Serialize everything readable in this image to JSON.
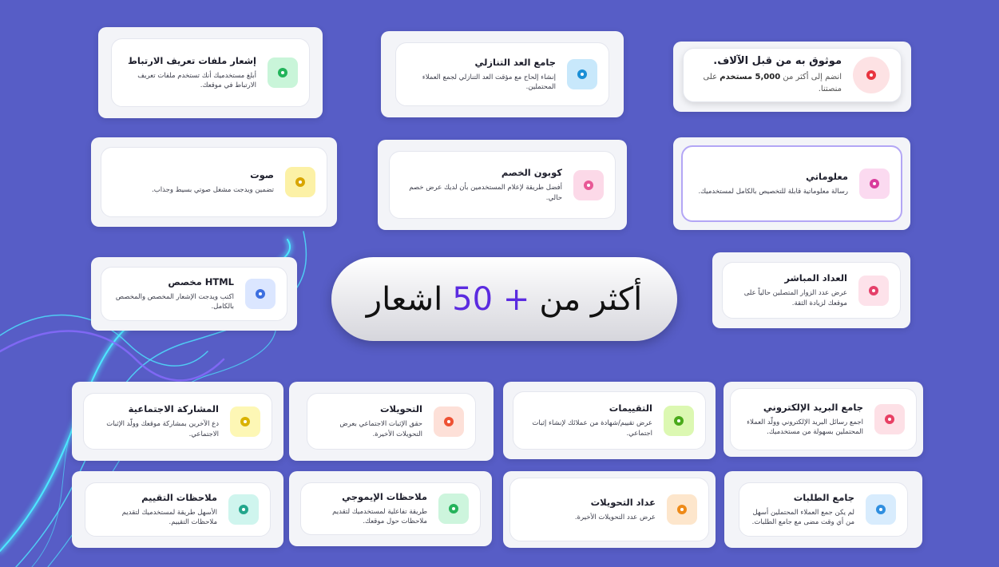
{
  "headline": {
    "before": "أكثر من",
    "highlight": "+ 50",
    "after": "اشعار"
  },
  "cards": [
    {
      "title": "إشعار ملفات تعريف الارتباط",
      "description": "أبلغ مستخدميك أنك تستخدم ملفات تعريف الارتباط في موقعك."
    },
    {
      "title": "جامع العد التنازلي",
      "description": "إنشاء إلحاح مع مؤقت العد التنازلي لجمع العملاء المحتملين."
    },
    {
      "title": "موثوق به من قبل الآلاف.",
      "description_before": "انضم إلى أكثر من",
      "description_bold": "5,000 مستخدم",
      "description_after": "على منصتنا."
    },
    {
      "title": "صوت",
      "description": "تضمين ويدجت مشغل صوتي بسيط وجذاب."
    },
    {
      "title": "كوبون الخصم",
      "description": "أفضل طريقة لإعلام المستخدمين بأن لديك عرض خصم حالي."
    },
    {
      "title": "معلوماتي",
      "description": "رسالة معلوماتية قابلة للتخصيص بالكامل لمستخدميك."
    },
    {
      "title": "HTML مخصص",
      "description": "اكتب ويدجت الإشعار المخصص والمخصص بالكامل."
    },
    {
      "title": "العداد المباشر",
      "description": "عرض عدد الزوار المتصلين حالياً على موقعك لزيادة الثقة."
    },
    {
      "title": "المشاركة الاجتماعية",
      "description": "دع الآخرين بمشاركة موقعك وولّد الإثبات الاجتماعي."
    },
    {
      "title": "التحويلات",
      "description": "حقق الإثبات الاجتماعي بعرض التحويلات الأخيرة."
    },
    {
      "title": "التقييمات",
      "description": "عرض تقييم/شهادة من عملائك لإنشاء إثبات اجتماعي."
    },
    {
      "title": "جامع البريد الإلكتروني",
      "description": "اجمع رسائل البريد الإلكتروني وولّد العملاء المحتملين بسهولة من مستخدميك."
    },
    {
      "title": "ملاحظات التقييم",
      "description": "الأسهل طريقة لمستخدميك لتقديم ملاحظات التقييم."
    },
    {
      "title": "ملاحظات الإيموجي",
      "description": "طريقة تفاعلية لمستخدميك لتقديم ملاحظات حول موقعك."
    },
    {
      "title": "عداد التحويلات",
      "description": "عرض عدد التحويلات الأخيرة."
    },
    {
      "title": "جامع الطلبات",
      "description": "لم يكن جمع العملاء المحتملين أسهل من أي وقت مضى مع جامع الطلبات."
    }
  ]
}
